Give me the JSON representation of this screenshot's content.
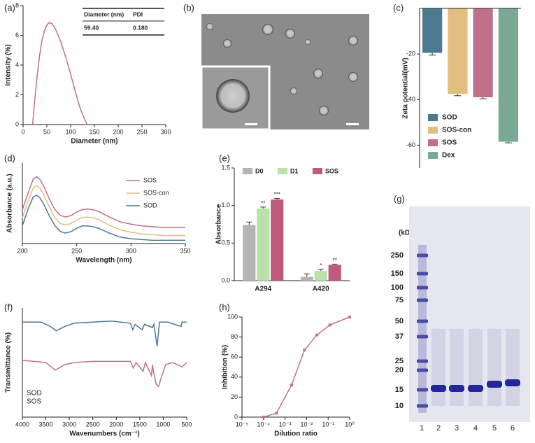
{
  "chart_data": [
    {
      "type": "line",
      "label": "(a)",
      "xlabel": "Diameter (nm)",
      "ylabel": "Intensity (%)",
      "x": [
        20,
        25,
        30,
        35,
        40,
        45,
        50,
        55,
        60,
        65,
        70,
        80,
        90,
        100,
        110,
        120,
        130,
        135
      ],
      "series": [
        {
          "color": "#c0708a",
          "values": [
            0,
            1.8,
            3.4,
            4.7,
            5.7,
            6.3,
            6.7,
            6.85,
            6.8,
            6.6,
            6.3,
            5.5,
            4.5,
            3.4,
            2.2,
            1.1,
            0.3,
            0
          ]
        }
      ],
      "xlim": [
        0,
        300
      ],
      "xticks": [
        0,
        50,
        100,
        150,
        200,
        250,
        300
      ],
      "ylim": [
        0,
        8
      ],
      "yticks": [
        0,
        2,
        4,
        6,
        8
      ],
      "table": {
        "columns": [
          "Diameter (nm)",
          "PDI"
        ],
        "rows": [
          [
            "59.40",
            "0.180"
          ]
        ]
      }
    },
    {
      "type": "bar",
      "label": "(c)",
      "ylabel": "Zeta potential(mV)",
      "categories": [
        "SOD",
        "SOS-con",
        "SOS",
        "Dex"
      ],
      "values": [
        -19.5,
        -37.5,
        -39,
        -58.5
      ],
      "errors": [
        1,
        0.8,
        0.7,
        0.5
      ],
      "colors": [
        "#4d7a8f",
        "#e3bf7f",
        "#c0708a",
        "#7aaa95"
      ],
      "ylim": [
        -70,
        0
      ],
      "yticks": [
        -60,
        -40,
        -20
      ],
      "legend": "lower left"
    },
    {
      "type": "line",
      "label": "(d)",
      "xlabel": "Wavelength (nm)",
      "ylabel": "Absorbance (a.u.)",
      "x": [
        200,
        205,
        210,
        213,
        216,
        220,
        225,
        230,
        235,
        240,
        245,
        250,
        255,
        260,
        265,
        270,
        280,
        290,
        300,
        310,
        320,
        330,
        340,
        350
      ],
      "series": [
        {
          "name": "SOS",
          "color": "#c0708a",
          "values": [
            0.42,
            0.62,
            0.8,
            0.83,
            0.8,
            0.7,
            0.55,
            0.42,
            0.35,
            0.33,
            0.35,
            0.39,
            0.42,
            0.43,
            0.42,
            0.4,
            0.33,
            0.27,
            0.24,
            0.22,
            0.21,
            0.2,
            0.2,
            0.2
          ]
        },
        {
          "name": "SOS-con",
          "color": "#e3bf7f",
          "values": [
            0.32,
            0.52,
            0.69,
            0.72,
            0.69,
            0.6,
            0.45,
            0.32,
            0.25,
            0.23,
            0.25,
            0.29,
            0.32,
            0.33,
            0.32,
            0.3,
            0.23,
            0.17,
            0.14,
            0.12,
            0.11,
            0.1,
            0.1,
            0.1
          ]
        },
        {
          "name": "SOD",
          "color": "#4d7a8f",
          "values": [
            0.22,
            0.42,
            0.58,
            0.6,
            0.57,
            0.48,
            0.34,
            0.22,
            0.15,
            0.13,
            0.15,
            0.19,
            0.22,
            0.22,
            0.21,
            0.19,
            0.13,
            0.08,
            0.06,
            0.05,
            0.04,
            0.04,
            0.04,
            0.04
          ]
        }
      ],
      "xlim": [
        200,
        350
      ],
      "xticks": [
        200,
        250,
        300,
        350
      ],
      "ylim": [
        0,
        1
      ],
      "legend": "upper right"
    },
    {
      "type": "grouped-bar",
      "label": "(e)",
      "ylabel": "Absorbance",
      "categories": [
        "A294",
        "A420"
      ],
      "series": [
        {
          "name": "D0",
          "color": "#b5b5b5",
          "values": [
            0.74,
            0.05
          ],
          "errors": [
            0.04,
            0.04
          ]
        },
        {
          "name": "D1",
          "color": "#b8e2a8",
          "values": [
            0.96,
            0.13
          ],
          "errors": [
            0.02,
            0.02
          ],
          "labels": [
            "**",
            "*"
          ]
        },
        {
          "name": "SOS",
          "color": "#c05a7c",
          "values": [
            1.08,
            0.21
          ],
          "errors": [
            0.015,
            0.01
          ],
          "labels": [
            "***",
            "**"
          ]
        }
      ],
      "ylim": [
        0,
        1.5
      ],
      "yticks": [
        {
          "value": 0,
          "label": "0.0"
        },
        0.5,
        {
          "value": 1,
          "label": "1.0"
        },
        1.5
      ],
      "legend": "top"
    },
    {
      "type": "line",
      "label": "(f)",
      "xlabel": "Wavenumbers (cm⁻¹)",
      "ylabel": "Transmittance (%)",
      "series": [
        {
          "name": "SOD",
          "color": "#4d7a8f",
          "x": [
            4000,
            3600,
            3400,
            3280,
            3100,
            2900,
            2500,
            2100,
            1700,
            1650,
            1600,
            1450,
            1400,
            1230,
            1200,
            1130,
            1080,
            900,
            620,
            600,
            500
          ],
          "values": [
            0.87,
            0.87,
            0.83,
            0.79,
            0.83,
            0.86,
            0.87,
            0.88,
            0.86,
            0.8,
            0.85,
            0.8,
            0.85,
            0.82,
            0.85,
            0.65,
            0.87,
            0.87,
            0.83,
            0.87,
            0.87
          ]
        },
        {
          "name": "SOS",
          "color": "#c0708a",
          "x": [
            4000,
            3500,
            3300,
            3100,
            2900,
            2500,
            2000,
            1700,
            1640,
            1580,
            1430,
            1380,
            1250,
            1230,
            1200,
            1150,
            1100,
            1050,
            950,
            800,
            600,
            500
          ],
          "values": [
            0.52,
            0.5,
            0.43,
            0.48,
            0.5,
            0.51,
            0.51,
            0.51,
            0.45,
            0.5,
            0.42,
            0.5,
            0.38,
            0.48,
            0.4,
            0.3,
            0.28,
            0.35,
            0.48,
            0.5,
            0.46,
            0.5
          ]
        }
      ],
      "xlim": [
        4000,
        500
      ],
      "xticks": [
        4000,
        3500,
        3000,
        2500,
        2000,
        1500,
        1000,
        500
      ],
      "ylim": [
        0,
        1
      ],
      "legend": "lower left"
    },
    {
      "type": "line",
      "label": "(h)",
      "xlabel": "Dilution ratio",
      "ylabel": "Inhibition (%)",
      "xlog": true,
      "x": [
        0.0001,
        0.0004,
        0.002,
        0.008,
        0.03,
        0.12,
        1
      ],
      "series": [
        {
          "color": "#c0708a",
          "values": [
            0,
            4,
            32,
            67,
            82,
            92,
            100
          ]
        }
      ],
      "xlim": [
        1e-05,
        1
      ],
      "xticks": [
        {
          "value": 1e-05,
          "label": "10⁻⁵"
        },
        {
          "value": 0.0001,
          "label": "10⁻⁴"
        },
        {
          "value": 0.001,
          "label": "10⁻³"
        },
        {
          "value": 0.01,
          "label": "10⁻²"
        },
        {
          "value": 0.1,
          "label": "10⁻¹"
        },
        {
          "value": 1,
          "label": "10⁰"
        }
      ],
      "ylim": [
        0,
        100
      ],
      "yticks": [
        0,
        20,
        40,
        60,
        80,
        100
      ]
    }
  ],
  "figure_b": {
    "label": "(b)"
  },
  "figure_g": {
    "label": "(g)",
    "unit": "(kDa)",
    "markers": [
      "250",
      "150",
      "100",
      "75",
      "50",
      "37",
      "25",
      "20",
      "15",
      "10"
    ],
    "lanes": [
      "1",
      "2",
      "3",
      "4",
      "5",
      "6"
    ]
  }
}
